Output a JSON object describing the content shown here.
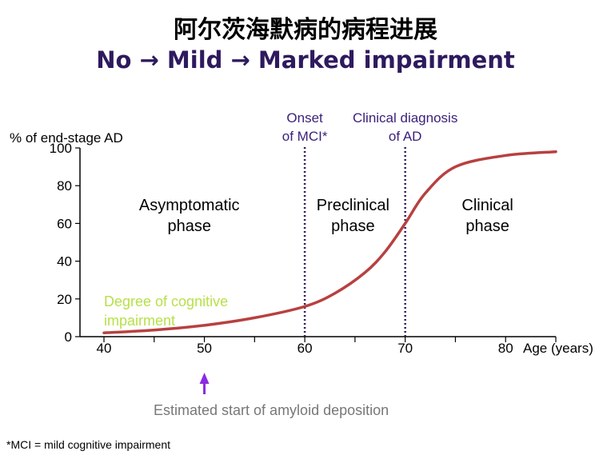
{
  "title": "阿尔茨海默病的病程进展",
  "subtitle": "No → Mild → Marked impairment",
  "footnote": "*MCI = mild cognitive impairment",
  "colors": {
    "curve": "#b84040",
    "purple": "#3a1f7a",
    "green": "#b8e04a",
    "gray": "#777777",
    "arrow": "#8a2be2"
  },
  "chart_data": {
    "type": "line",
    "ylabel": "% of end-stage AD",
    "xlabel": "Age (years)",
    "xlim": [
      40,
      85
    ],
    "ylim": [
      0,
      100
    ],
    "x_ticks": [
      40,
      50,
      60,
      70,
      80
    ],
    "y_ticks": [
      0,
      20,
      40,
      60,
      80,
      100
    ],
    "series": [
      {
        "name": "Degree of cognitive impairment",
        "x": [
          40,
          45,
          50,
          55,
          60,
          63,
          66,
          68,
          70,
          72,
          75,
          80,
          85
        ],
        "y": [
          2,
          3.5,
          6,
          10,
          16,
          23,
          34,
          45,
          60,
          76,
          90,
          96,
          98
        ]
      }
    ],
    "series_label": [
      "Degree of cognitive",
      "impairment"
    ],
    "markers": [
      {
        "x": 60,
        "label": [
          "Onset",
          "of MCI*"
        ]
      },
      {
        "x": 70,
        "label": [
          "Clinical diagnosis",
          "of AD"
        ]
      }
    ],
    "phases": [
      {
        "x": 48.5,
        "label": [
          "Asymptomatic",
          "phase"
        ]
      },
      {
        "x": 64.8,
        "label": [
          "Preclinical",
          "phase"
        ]
      },
      {
        "x": 78.2,
        "label": [
          "Clinical",
          "phase"
        ]
      }
    ],
    "annotation": {
      "x": 50,
      "label": "Estimated start of amyloid deposition"
    }
  }
}
